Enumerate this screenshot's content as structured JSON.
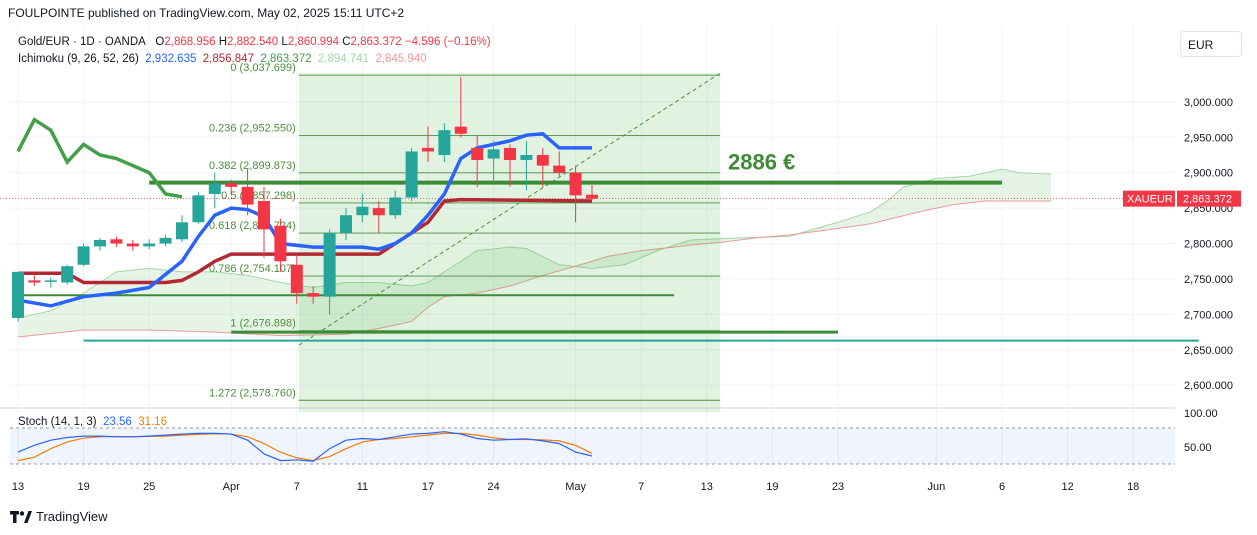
{
  "header": {
    "text": "FOULPOINTE published on TradingView.com, May 02, 2025 15:11 UTC+2"
  },
  "legend": {
    "symbol": "Gold/EUR · 1D · OANDA",
    "o_label": "O",
    "o_value": "2,868.956",
    "h_label": "H",
    "h_value": "2,882.540",
    "l_label": "L",
    "l_value": "2,860.994",
    "c_label": "C",
    "c_value": "2,863.372",
    "change": "−4.596 (−0.16%)"
  },
  "ichimoku": {
    "label": "Ichimoku (9, 26, 52, 26)",
    "v1": "2,932.635",
    "v2": "2,856.847",
    "v3": "2,863.372",
    "v4": "2,894.741",
    "v5": "2,845.940"
  },
  "currency_button": "EUR",
  "stoch": {
    "label": "Stoch (14, 1, 3)",
    "k": "23.56",
    "d": "31.16"
  },
  "footer": {
    "brand": "TradingView"
  },
  "colors": {
    "up": "#26a69a",
    "down": "#f23645",
    "tenkan": "#2962ff",
    "kijun": "#b22833",
    "chikou": "#43a047",
    "fib": "#4a8f3a",
    "target": "#3d8b37",
    "stoch_k": "#2962ff",
    "stoch_d": "#f57c00"
  },
  "chart_data": [
    {
      "type": "candlestick",
      "symbol": "XAUEUR",
      "last_price_label": "XAUEUR",
      "last_price": "2,863.372",
      "annotation": "2886 €",
      "y_ticks": [
        "3,000.000",
        "2,950.000",
        "2,900.000",
        "2,850.000",
        "2,800.000",
        "2,750.000",
        "2,700.000",
        "2,650.000",
        "2,600.000"
      ],
      "ylim": [
        2565,
        3045
      ],
      "x_ticks": [
        {
          "label": "13",
          "i": 0
        },
        {
          "label": "19",
          "i": 4
        },
        {
          "label": "25",
          "i": 8
        },
        {
          "label": "Apr",
          "i": 13
        },
        {
          "label": "7",
          "i": 17
        },
        {
          "label": "11",
          "i": 21
        },
        {
          "label": "17",
          "i": 25
        },
        {
          "label": "24",
          "i": 29
        },
        {
          "label": "May",
          "i": 34
        },
        {
          "label": "7",
          "i": 38
        },
        {
          "label": "13",
          "i": 42
        },
        {
          "label": "19",
          "i": 46
        },
        {
          "label": "23",
          "i": 50
        },
        {
          "label": "Jun",
          "i": 56
        },
        {
          "label": "6",
          "i": 60
        },
        {
          "label": "12",
          "i": 64
        },
        {
          "label": "18",
          "i": 68
        }
      ],
      "candles": [
        [
          2695,
          2760,
          2690,
          2760
        ],
        [
          2748,
          2755,
          2740,
          2745
        ],
        [
          2746,
          2752,
          2738,
          2748
        ],
        [
          2745,
          2770,
          2742,
          2768
        ],
        [
          2770,
          2800,
          2768,
          2796
        ],
        [
          2796,
          2808,
          2790,
          2805
        ],
        [
          2806,
          2810,
          2795,
          2800
        ],
        [
          2800,
          2805,
          2790,
          2796
        ],
        [
          2796,
          2806,
          2792,
          2800
        ],
        [
          2800,
          2812,
          2796,
          2808
        ],
        [
          2806,
          2840,
          2802,
          2830
        ],
        [
          2830,
          2872,
          2828,
          2868
        ],
        [
          2870,
          2900,
          2850,
          2885
        ],
        [
          2885,
          2890,
          2870,
          2880
        ],
        [
          2880,
          2905,
          2840,
          2855
        ],
        [
          2860,
          2880,
          2780,
          2820
        ],
        [
          2825,
          2835,
          2760,
          2775
        ],
        [
          2770,
          2785,
          2715,
          2730
        ],
        [
          2730,
          2740,
          2715,
          2725
        ],
        [
          2725,
          2820,
          2700,
          2815
        ],
        [
          2815,
          2850,
          2805,
          2840
        ],
        [
          2840,
          2870,
          2830,
          2852
        ],
        [
          2850,
          2860,
          2815,
          2840
        ],
        [
          2840,
          2875,
          2835,
          2865
        ],
        [
          2865,
          2935,
          2860,
          2930
        ],
        [
          2935,
          2965,
          2915,
          2930
        ],
        [
          2925,
          2970,
          2915,
          2960
        ],
        [
          2965,
          3035,
          2950,
          2955
        ],
        [
          2935,
          2952,
          2880,
          2918
        ],
        [
          2920,
          2945,
          2885,
          2933
        ],
        [
          2935,
          2940,
          2880,
          2918
        ],
        [
          2918,
          2945,
          2875,
          2925
        ],
        [
          2925,
          2935,
          2880,
          2910
        ],
        [
          2910,
          2930,
          2895,
          2900
        ],
        [
          2900,
          2910,
          2830,
          2868
        ],
        [
          2868.956,
          2882.54,
          2860.994,
          2863.372
        ]
      ],
      "tenkan": [
        [
          0,
          2720
        ],
        [
          2,
          2712
        ],
        [
          4,
          2725
        ],
        [
          6,
          2730
        ],
        [
          8,
          2738
        ],
        [
          10,
          2775
        ],
        [
          11,
          2810
        ],
        [
          12,
          2840
        ],
        [
          13,
          2850
        ],
        [
          14,
          2848
        ],
        [
          15,
          2838
        ],
        [
          16,
          2800
        ],
        [
          18,
          2795
        ],
        [
          21,
          2795
        ],
        [
          22,
          2792
        ],
        [
          23,
          2800
        ],
        [
          24,
          2815
        ],
        [
          25,
          2840
        ],
        [
          26,
          2870
        ],
        [
          27,
          2920
        ],
        [
          28,
          2935
        ],
        [
          29,
          2940
        ],
        [
          30,
          2945
        ],
        [
          31,
          2953
        ],
        [
          32,
          2955
        ],
        [
          33,
          2935
        ],
        [
          35,
          2935
        ]
      ],
      "kijun": [
        [
          0,
          2758
        ],
        [
          3,
          2758
        ],
        [
          4,
          2745
        ],
        [
          9,
          2745
        ],
        [
          10,
          2748
        ],
        [
          11,
          2760
        ],
        [
          12,
          2775
        ],
        [
          13,
          2785
        ],
        [
          17,
          2785
        ],
        [
          22,
          2785
        ],
        [
          23,
          2800
        ],
        [
          24,
          2815
        ],
        [
          25,
          2830
        ],
        [
          26,
          2860
        ],
        [
          27,
          2862
        ],
        [
          35,
          2860
        ]
      ],
      "chikou": [
        [
          0,
          2930
        ],
        [
          1,
          2975
        ],
        [
          2,
          2960
        ],
        [
          3,
          2915
        ],
        [
          4,
          2940
        ],
        [
          5,
          2925
        ],
        [
          6,
          2920
        ],
        [
          7,
          2910
        ],
        [
          8,
          2900
        ],
        [
          9,
          2870
        ],
        [
          10,
          2866
        ]
      ],
      "span_a": [
        [
          0,
          2695
        ],
        [
          2,
          2705
        ],
        [
          4,
          2730
        ],
        [
          6,
          2760
        ],
        [
          8,
          2765
        ],
        [
          10,
          2760
        ],
        [
          12,
          2760
        ],
        [
          14,
          2755
        ],
        [
          16,
          2745
        ],
        [
          18,
          2738
        ],
        [
          20,
          2745
        ],
        [
          22,
          2745
        ],
        [
          24,
          2740
        ],
        [
          25,
          2745
        ],
        [
          26,
          2760
        ],
        [
          28,
          2790
        ],
        [
          30,
          2795
        ],
        [
          31,
          2793
        ],
        [
          33,
          2770
        ],
        [
          35,
          2765
        ],
        [
          37,
          2770
        ],
        [
          39,
          2790
        ],
        [
          41,
          2805
        ],
        [
          44,
          2808
        ],
        [
          47,
          2810
        ],
        [
          50,
          2830
        ],
        [
          52,
          2845
        ],
        [
          53,
          2860
        ],
        [
          54,
          2880
        ],
        [
          56,
          2892
        ],
        [
          58,
          2895
        ],
        [
          59,
          2900
        ],
        [
          60,
          2905
        ],
        [
          61,
          2900
        ],
        [
          63,
          2898
        ]
      ],
      "span_b": [
        [
          0,
          2668
        ],
        [
          4,
          2678
        ],
        [
          8,
          2678
        ],
        [
          12,
          2675
        ],
        [
          16,
          2670
        ],
        [
          20,
          2672
        ],
        [
          22,
          2680
        ],
        [
          24,
          2690
        ],
        [
          25,
          2710
        ],
        [
          26,
          2725
        ],
        [
          28,
          2730
        ],
        [
          30,
          2740
        ],
        [
          32,
          2755
        ],
        [
          34,
          2768
        ],
        [
          36,
          2782
        ],
        [
          38,
          2790
        ],
        [
          40,
          2795
        ],
        [
          41,
          2798
        ],
        [
          43,
          2802
        ],
        [
          45,
          2808
        ],
        [
          47,
          2812
        ],
        [
          49,
          2818
        ],
        [
          52,
          2828
        ],
        [
          55,
          2845
        ],
        [
          57,
          2855
        ],
        [
          59,
          2860
        ],
        [
          63,
          2860
        ]
      ],
      "fib_levels": [
        {
          "label": "0 (3,037.699)",
          "price": 3037.699
        },
        {
          "label": "0.236 (2,952.550)",
          "price": 2952.55
        },
        {
          "label": "0.382 (2,899.873)",
          "price": 2899.873
        },
        {
          "label": "0.5 (2,857.298)",
          "price": 2857.298
        },
        {
          "label": "0.618 (2,814.724)",
          "price": 2814.724
        },
        {
          "label": "0.786 (2,754.107)",
          "price": 2754.107
        },
        {
          "label": "1 (2,676.898)",
          "price": 2676.898
        },
        {
          "label": "1.272 (2,578.760)",
          "price": 2578.76
        }
      ],
      "levels": [
        {
          "price": 2886,
          "from": 8,
          "to": 60
        },
        {
          "price": 2727,
          "from": 0,
          "to": 40
        },
        {
          "price": 2675,
          "from": 13,
          "to": 50
        },
        {
          "price": 2663,
          "from": 4,
          "to": 72
        }
      ]
    },
    {
      "type": "line",
      "name": "Stoch (14, 1, 3)",
      "y_ticks": [
        "100.00",
        "50.00"
      ],
      "ylim": [
        0,
        100
      ],
      "k": [
        [
          0,
          35
        ],
        [
          1,
          55
        ],
        [
          2,
          70
        ],
        [
          3,
          78
        ],
        [
          4,
          82
        ],
        [
          5,
          82
        ],
        [
          6,
          80
        ],
        [
          7,
          80
        ],
        [
          8,
          82
        ],
        [
          9,
          85
        ],
        [
          10,
          88
        ],
        [
          11,
          90
        ],
        [
          12,
          90
        ],
        [
          13,
          88
        ],
        [
          14,
          70
        ],
        [
          15,
          30
        ],
        [
          16,
          10
        ],
        [
          17,
          12
        ],
        [
          18,
          8
        ],
        [
          19,
          45
        ],
        [
          20,
          70
        ],
        [
          21,
          75
        ],
        [
          22,
          72
        ],
        [
          23,
          80
        ],
        [
          24,
          88
        ],
        [
          25,
          90
        ],
        [
          26,
          95
        ],
        [
          27,
          88
        ],
        [
          28,
          75
        ],
        [
          29,
          70
        ],
        [
          30,
          72
        ],
        [
          31,
          74
        ],
        [
          32,
          68
        ],
        [
          33,
          60
        ],
        [
          34,
          35
        ],
        [
          35,
          23.56
        ]
      ],
      "d": [
        [
          0,
          10
        ],
        [
          1,
          20
        ],
        [
          2,
          45
        ],
        [
          3,
          65
        ],
        [
          4,
          76
        ],
        [
          5,
          80
        ],
        [
          6,
          81
        ],
        [
          7,
          80
        ],
        [
          8,
          81
        ],
        [
          9,
          82
        ],
        [
          10,
          85
        ],
        [
          11,
          87
        ],
        [
          12,
          89
        ],
        [
          13,
          88
        ],
        [
          14,
          80
        ],
        [
          15,
          60
        ],
        [
          16,
          35
        ],
        [
          17,
          18
        ],
        [
          18,
          10
        ],
        [
          19,
          22
        ],
        [
          20,
          45
        ],
        [
          21,
          65
        ],
        [
          22,
          72
        ],
        [
          23,
          75
        ],
        [
          24,
          80
        ],
        [
          25,
          85
        ],
        [
          26,
          90
        ],
        [
          27,
          90
        ],
        [
          28,
          85
        ],
        [
          29,
          77
        ],
        [
          30,
          72
        ],
        [
          31,
          72
        ],
        [
          32,
          71
        ],
        [
          33,
          68
        ],
        [
          34,
          55
        ],
        [
          35,
          31.16
        ]
      ]
    }
  ]
}
